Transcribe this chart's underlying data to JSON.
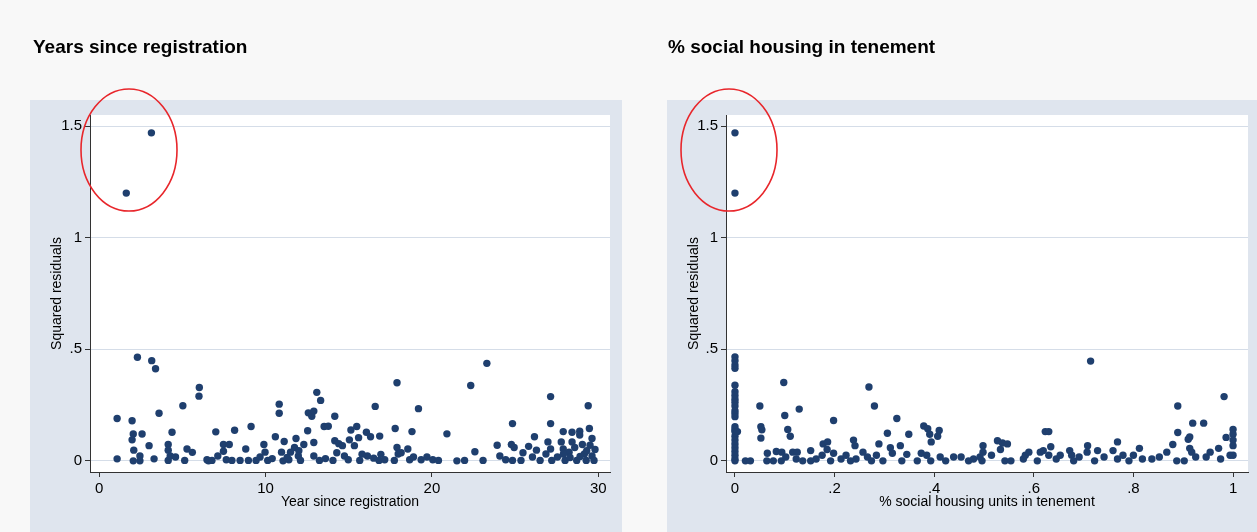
{
  "chart_data": [
    {
      "type": "scatter",
      "title": "Years since registration",
      "xlabel": "Year since registration",
      "ylabel": "Squared residuals",
      "color": "#1f3f6e",
      "marker": "circle",
      "grid": "y",
      "xlim": [
        -0.55,
        30.7
      ],
      "xticks": [
        0,
        10,
        20,
        30
      ],
      "ylim": [
        -0.05,
        1.55
      ],
      "yticks": [
        0,
        {
          "value": 0.5,
          "label": ".5"
        },
        1,
        1.5
      ],
      "x": [
        1.08,
        1.08,
        1.63,
        1.98,
        2.05,
        1.98,
        2.08,
        2.05,
        2.3,
        2.45,
        2.45,
        2.58,
        3.0,
        3.14,
        3.16,
        3.3,
        3.39,
        3.6,
        4.15,
        4.15,
        4.15,
        4.38,
        4.27,
        4.59,
        5.03,
        5.14,
        5.28,
        5.6,
        6.02,
        6.0,
        6.48,
        6.57,
        7.01,
        6.78,
        7.13,
        7.47,
        7.47,
        7.82,
        7.64,
        7.98,
        8.14,
        8.47,
        8.81,
        8.97,
        9.13,
        9.43,
        9.67,
        9.9,
        9.97,
        10.13,
        10.59,
        10.82,
        10.82,
        10.96,
        11.12,
        11.05,
        11.4,
        11.5,
        11.74,
        11.83,
        11.97,
        12.1,
        12.3,
        12.53,
        12.57,
        12.78,
        12.9,
        13.08,
        13.31,
        12.9,
        12.9,
        13.24,
        13.52,
        13.77,
        14.16,
        14.16,
        14.4,
        14.62,
        14.05,
        14.28,
        14.74,
        14.97,
        15.13,
        15.34,
        15.48,
        15.59,
        15.04,
        15.66,
        16.06,
        16.31,
        16.12,
        16.59,
        16.86,
        16.82,
        16.93,
        17.16,
        17.79,
        17.9,
        17.9,
        17.97,
        17.74,
        18.15,
        18.55,
        18.8,
        18.66,
        18.89,
        19.19,
        19.35,
        19.7,
        20.05,
        20.39,
        20.9,
        21.5,
        21.96,
        22.33,
        22.58,
        23.07,
        23.3,
        23.92,
        24.08,
        24.43,
        24.77,
        24.84,
        24.94,
        24.84,
        25.35,
        25.47,
        25.81,
        26.04,
        26.16,
        26.28,
        26.5,
        26.85,
        26.97,
        27.13,
        27.13,
        27.13,
        27.2,
        27.54,
        27.77,
        27.89,
        27.89,
        28.0,
        28.24,
        28.42,
        28.42,
        28.58,
        28.7,
        28.88,
        28.88,
        29.04,
        29.16,
        29.27,
        29.39,
        29.46,
        29.62,
        29.62,
        29.74,
        29.8,
        10.4,
        11.3,
        12.0,
        13.6,
        15.8,
        16.5,
        27.9,
        28.3,
        28.9,
        29.3,
        29.5
      ],
      "values": [
        0.009,
        0.19,
        1.2,
        0.18,
        0.12,
        0.094,
        0.048,
        0,
        0.464,
        0.022,
        0,
        0.12,
        0.068,
        1.47,
        0.449,
        0.009,
        0.413,
        0.213,
        0.073,
        0.048,
        0.002,
        0.128,
        0.022,
        0.017,
        0.247,
        0.002,
        0.053,
        0.038,
        0.329,
        0.29,
        0.005,
        0,
        0.13,
        0.002,
        0.022,
        0.043,
        0.073,
        0.073,
        0.005,
        0.002,
        0.137,
        0.002,
        0.053,
        0.002,
        0.154,
        0.002,
        0.017,
        0.073,
        0.039,
        0.002,
        0.108,
        0.254,
        0.213,
        0.039,
        0.087,
        0,
        0.005,
        0.039,
        0.06,
        0.1,
        0.022,
        0.002,
        0.073,
        0.135,
        0.215,
        0.2,
        0.223,
        0.307,
        0.271,
        0.082,
        0.022,
        0.002,
        0.154,
        0.155,
        0.2,
        0.09,
        0.077,
        0.068,
        0.002,
        0.036,
        0.022,
        0.005,
        0.138,
        0.068,
        0.154,
        0.104,
        0.094,
        0.002,
        0.128,
        0.108,
        0.022,
        0.244,
        0.111,
        0.002,
        0.029,
        0.005,
        0.145,
        0.35,
        0.06,
        0.031,
        0.002,
        0.036,
        0.053,
        0.131,
        0.005,
        0.017,
        0.234,
        0.005,
        0.017,
        0.005,
        0.002,
        0.121,
        0,
        0.002,
        0.338,
        0.041,
        0.002,
        0.437,
        0.07,
        0.022,
        0.005,
        0.073,
        0.167,
        0.06,
        0.002,
        0.002,
        0.036,
        0.065,
        0.017,
        0.108,
        0.048,
        0.002,
        0.031,
        0.085,
        0.288,
        0.167,
        0.053,
        0.002,
        0.017,
        0.085,
        0.131,
        0.053,
        0.002,
        0.039,
        0.128,
        0.085,
        0.06,
        0.002,
        0.133,
        0.116,
        0.073,
        0.031,
        0.002,
        0.247,
        0.145,
        0.1,
        0.022,
        0.002,
        0.051,
        0.01,
        0.015,
        0.045,
        0.01,
        0.03,
        0.012,
        0.03,
        0.015,
        0.02,
        0.045,
        0.07
      ]
    },
    {
      "type": "scatter",
      "title": "% social housing in tenement",
      "xlabel": "% social housing units in tenement",
      "ylabel": "Squared residuals",
      "color": "#1f3f6e",
      "marker": "circle",
      "grid": "y",
      "xlim": [
        -0.018,
        1.03
      ],
      "xticks": [
        0,
        {
          "value": 0.2,
          "label": ".2"
        },
        {
          "value": 0.4,
          "label": ".4"
        },
        {
          "value": 0.6,
          "label": ".6"
        },
        {
          "value": 0.8,
          "label": ".8"
        },
        1
      ],
      "ylim": [
        -0.05,
        1.55
      ],
      "yticks": [
        0,
        {
          "value": 0.5,
          "label": ".5"
        },
        1,
        1.5
      ],
      "x": [
        0,
        0,
        0,
        0,
        0,
        0,
        0,
        0,
        0,
        0,
        0,
        0,
        0,
        0,
        0,
        0,
        0,
        0,
        0,
        0,
        0,
        0,
        0,
        0,
        0,
        0,
        0.005,
        0.021,
        0.031,
        0.05,
        0.052,
        0.054,
        0.052,
        0.065,
        0.064,
        0.077,
        0.083,
        0.094,
        0.093,
        0.098,
        0.1,
        0.106,
        0.111,
        0.102,
        0.116,
        0.125,
        0.129,
        0.123,
        0.136,
        0.152,
        0.152,
        0.163,
        0.175,
        0.177,
        0.186,
        0.185,
        0.192,
        0.198,
        0.198,
        0.213,
        0.223,
        0.232,
        0.238,
        0.241,
        0.243,
        0.257,
        0.266,
        0.269,
        0.28,
        0.274,
        0.289,
        0.284,
        0.297,
        0.306,
        0.312,
        0.316,
        0.325,
        0.332,
        0.335,
        0.345,
        0.349,
        0.366,
        0.374,
        0.379,
        0.387,
        0.391,
        0.394,
        0.385,
        0.393,
        0.407,
        0.41,
        0.412,
        0.423,
        0.439,
        0.454,
        0.469,
        0.479,
        0.492,
        0.498,
        0.498,
        0.496,
        0.515,
        0.527,
        0.533,
        0.537,
        0.547,
        0.542,
        0.554,
        0.579,
        0.583,
        0.59,
        0.607,
        0.613,
        0.619,
        0.623,
        0.63,
        0.634,
        0.63,
        0.645,
        0.653,
        0.672,
        0.676,
        0.68,
        0.691,
        0.708,
        0.714,
        0.707,
        0.722,
        0.728,
        0.741,
        0.759,
        0.768,
        0.768,
        0.779,
        0.791,
        0.8,
        0.812,
        0.818,
        0.837,
        0.852,
        0.867,
        0.879,
        0.887,
        0.889,
        0.889,
        0.902,
        0.91,
        0.913,
        0.913,
        0.919,
        0.917,
        0.925,
        0.941,
        0.946,
        0.954,
        0.971,
        0.975,
        0.982,
        0.986,
        0.994,
        1,
        1,
        1,
        1,
        1
      ],
      "values": [
        0.466,
        0.449,
        0.429,
        0.415,
        0.339,
        0.31,
        0.293,
        0.276,
        0.263,
        0.246,
        0.225,
        0.212,
        0.198,
        0.153,
        0.141,
        0.131,
        0.11,
        0.093,
        0.076,
        0.059,
        0.042,
        0.025,
        0.008,
        0,
        1.47,
        1.2,
        0.131,
        0,
        0,
        0.246,
        0.153,
        0.139,
        0.102,
        0.034,
        0,
        0,
        0.042,
        0.039,
        0,
        0.351,
        0.203,
        0.141,
        0.11,
        0.017,
        0.039,
        0.039,
        0.232,
        0.008,
        0,
        0.046,
        0,
        0.008,
        0.025,
        0.076,
        0.085,
        0.051,
        0,
        0.181,
        0.034,
        0.008,
        0.025,
        0,
        0.093,
        0.068,
        0.008,
        0.039,
        0.017,
        0.331,
        0.246,
        0,
        0.076,
        0.025,
        0,
        0.124,
        0.059,
        0.034,
        0.19,
        0.068,
        0,
        0.029,
        0.119,
        0,
        0.034,
        0.156,
        0.144,
        0.119,
        0.085,
        0.025,
        0,
        0.11,
        0.136,
        0.017,
        0,
        0.017,
        0.017,
        0,
        0.008,
        0.017,
        0.068,
        0.039,
        0,
        0.025,
        0.09,
        0.051,
        0.08,
        0.076,
        0,
        0,
        0.008,
        0.025,
        0.039,
        0,
        0.039,
        0.046,
        0.131,
        0.131,
        0.063,
        0.025,
        0.008,
        0.025,
        0.046,
        0.025,
        0,
        0.017,
        0.068,
        0.447,
        0.039,
        0,
        0.046,
        0.017,
        0.046,
        0.085,
        0.008,
        0.025,
        0,
        0.025,
        0.056,
        0.008,
        0.008,
        0.017,
        0.039,
        0.073,
        0,
        0.246,
        0.127,
        0,
        0.097,
        0.107,
        0.056,
        0.169,
        0.039,
        0.017,
        0.169,
        0.017,
        0.039,
        0.056,
        0.008,
        0.288,
        0.105,
        0.025,
        0.141,
        0.119,
        0.093,
        0.068,
        0.025
      ]
    }
  ]
}
